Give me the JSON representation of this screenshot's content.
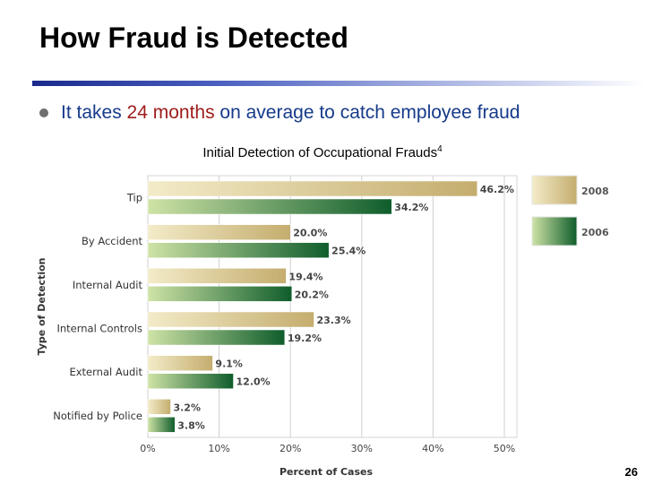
{
  "slide": {
    "title": "How Fraud is Detected",
    "bullet_prefix": "It takes ",
    "bullet_highlight": "24 months",
    "bullet_suffix": " on average to catch employee fraud",
    "page_number": "26"
  },
  "colors": {
    "title_rule": "#1a2a8c",
    "bullet_text": "#163a8a",
    "highlight_text": "#9e1b1b",
    "series_2008_dark": "#c4ad6e",
    "series_2008_light": "#f3ebc8",
    "series_2006_dark": "#0f5d2c",
    "series_2006_light": "#cfe3a6"
  },
  "chart_data": {
    "type": "bar",
    "orientation": "horizontal",
    "title": "Initial Detection of Occupational Frauds",
    "title_superscript": "4",
    "xlabel": "Percent of Cases",
    "ylabel": "Type of Detection",
    "categories": [
      "Tip",
      "By Accident",
      "Internal Audit",
      "Internal Controls",
      "External Audit",
      "Notified by Police"
    ],
    "series": [
      {
        "name": "2008",
        "values": [
          46.2,
          20.0,
          19.4,
          23.3,
          9.1,
          3.2
        ],
        "labels": [
          "46.2%",
          "20.0%",
          "19.4%",
          "23.3%",
          "9.1%",
          "3.2%"
        ]
      },
      {
        "name": "2006",
        "values": [
          34.2,
          25.4,
          20.2,
          19.2,
          12.0,
          3.8
        ],
        "labels": [
          "34.2%",
          "25.4%",
          "20.2%",
          "19.2%",
          "12.0%",
          "3.8%"
        ]
      }
    ],
    "xlim": [
      0,
      50
    ],
    "xticks": [
      "0%",
      "10%",
      "20%",
      "30%",
      "40%",
      "50%"
    ],
    "grid": "vertical",
    "legend_position": "right"
  }
}
